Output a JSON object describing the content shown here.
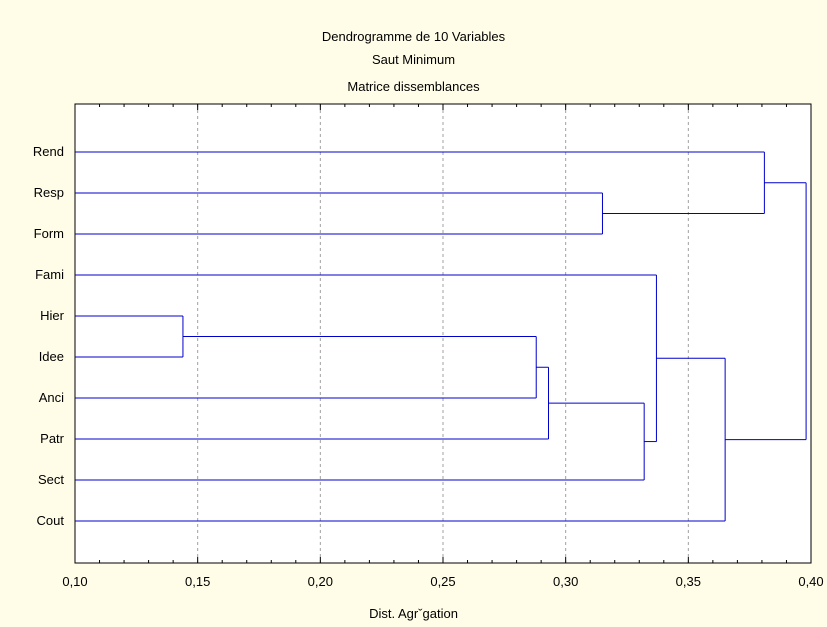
{
  "chart_data": {
    "type": "dendrogram",
    "title": "Dendrogramme de 10  Variables",
    "subtitle": "Saut Minimum",
    "subtitle2": "Matrice dissemblances",
    "xlabel": "Dist. Agrˇgation",
    "xlim": [
      0.1,
      0.4
    ],
    "xticks": [
      "0,10",
      "0,15",
      "0,20",
      "0,25",
      "0,30",
      "0,35",
      "0,40"
    ],
    "xtick_values": [
      0.1,
      0.15,
      0.2,
      0.25,
      0.3,
      0.35,
      0.4
    ],
    "grid": "vertical-dashed",
    "leaves": [
      "Rend",
      "Resp",
      "Form",
      "Fami",
      "Hier",
      "Idee",
      "Anci",
      "Patr",
      "Sect",
      "Cout"
    ],
    "merges": [
      {
        "left": "Hier",
        "right": "Idee",
        "height": 0.144
      },
      {
        "left": "Hier+Idee",
        "right": "Anci",
        "height": 0.288
      },
      {
        "left": "Hier+Idee+Anci",
        "right": "Patr",
        "height": 0.293
      },
      {
        "left": "Hier+Idee+Anci+Patr",
        "right": "Sect",
        "height": 0.332
      },
      {
        "left": "Fami",
        "right": "Hier+Idee+Anci+Patr+Sect",
        "height": 0.337
      },
      {
        "left": "Fami+Hier+Idee+Anci+Patr+Sect",
        "right": "Cout",
        "height": 0.365
      },
      {
        "left": "Resp",
        "right": "Form",
        "height": 0.315
      },
      {
        "left": "Rend",
        "right": "Resp+Form",
        "height": 0.381
      },
      {
        "left": "Rend+Resp+Form",
        "right": "Fami+Hier+Idee+Anci+Patr+Sect+Cout",
        "height": 0.398
      }
    ],
    "colors": {
      "line": "#0000cc",
      "grid": "#a0a0a0",
      "background": "#fffde8",
      "plot_background": "#ffffff"
    }
  }
}
